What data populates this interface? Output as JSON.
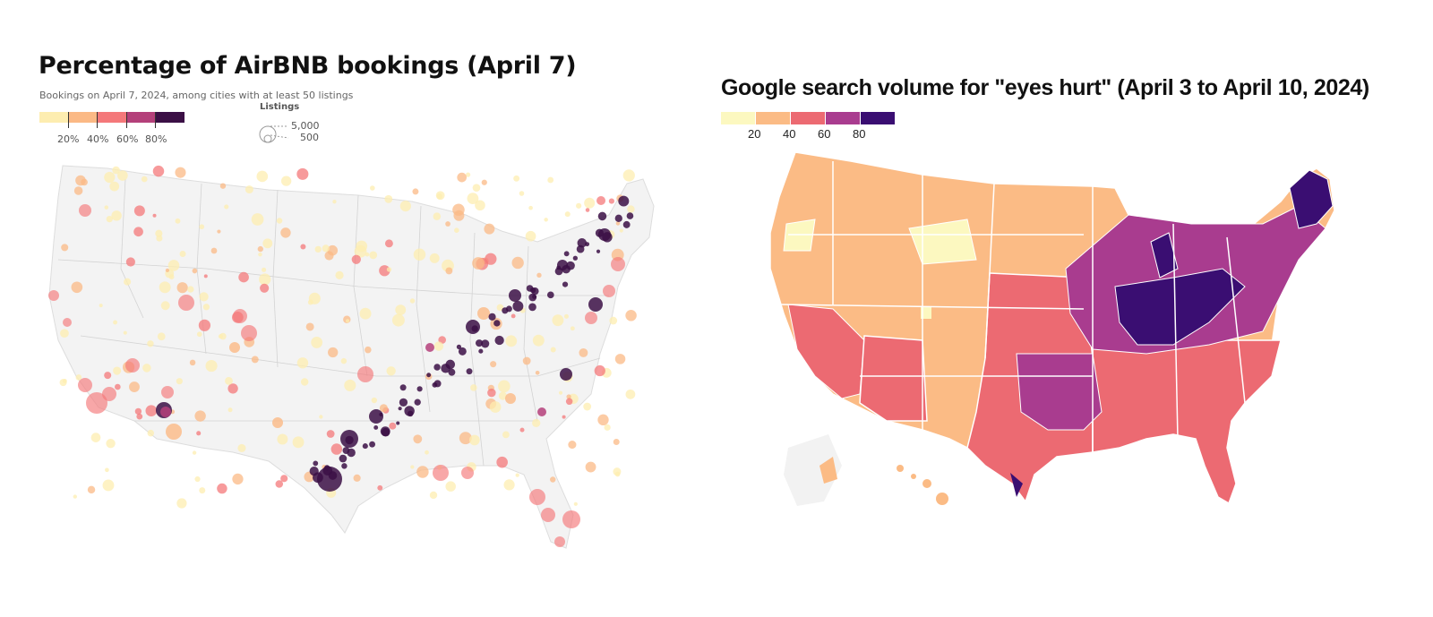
{
  "left": {
    "title": "Percentage of AirBNB bookings (April 7)",
    "subtitle": "Bookings on April 7, 2024, among cities with at least 50 listings",
    "color_legend": {
      "ticks": [
        "20%",
        "40%",
        "60%",
        "80%"
      ],
      "colors": [
        "#fdedb0",
        "#fbb985",
        "#f4787a",
        "#b4407a",
        "#3b0f45"
      ]
    },
    "size_legend": {
      "title": "Listings",
      "labels": [
        "5,000",
        "500"
      ]
    }
  },
  "right": {
    "title": "Google search volume for \"eyes hurt\" (April 3 to April 10, 2024)",
    "color_legend": {
      "ticks": [
        "20",
        "40",
        "60",
        "80"
      ],
      "colors": [
        "#fcf8c0",
        "#fbbb85",
        "#ec6a72",
        "#a93c8f",
        "#3a0e72"
      ]
    }
  }
}
